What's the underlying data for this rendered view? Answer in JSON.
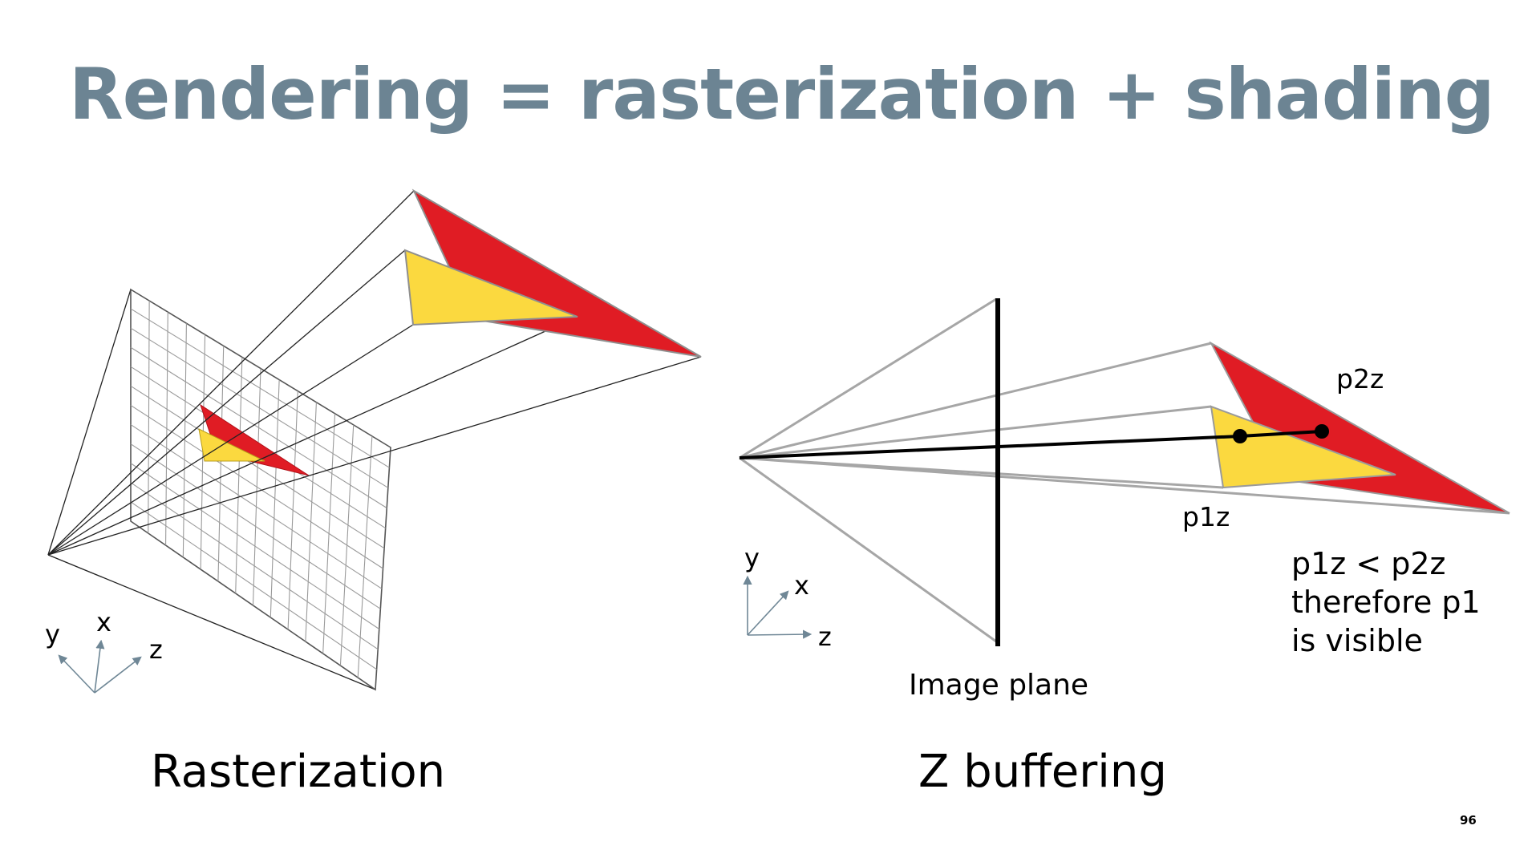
{
  "slide": {
    "title": "Rendering = rasterization + shading",
    "page_number": "96"
  },
  "colors": {
    "title": "#6c8493",
    "red_triangle": "#e01c24",
    "yellow_triangle": "#fbd93f",
    "grid": "#9a9a9a",
    "axis": "#6f8796",
    "ray_gray": "#a6a6a6"
  },
  "rasterization": {
    "caption": "Rasterization",
    "axis_labels": {
      "y": "y",
      "x": "x",
      "z": "z"
    }
  },
  "zbuffer": {
    "caption": "Z buffering",
    "image_plane_label": "Image plane",
    "p2z_label": "p2z",
    "p1z_label": "p1z",
    "explanation": [
      "p1z < p2z",
      "therefore p1",
      "is visible"
    ],
    "axis_labels": {
      "y": "y",
      "x": "x",
      "z": "z"
    }
  }
}
